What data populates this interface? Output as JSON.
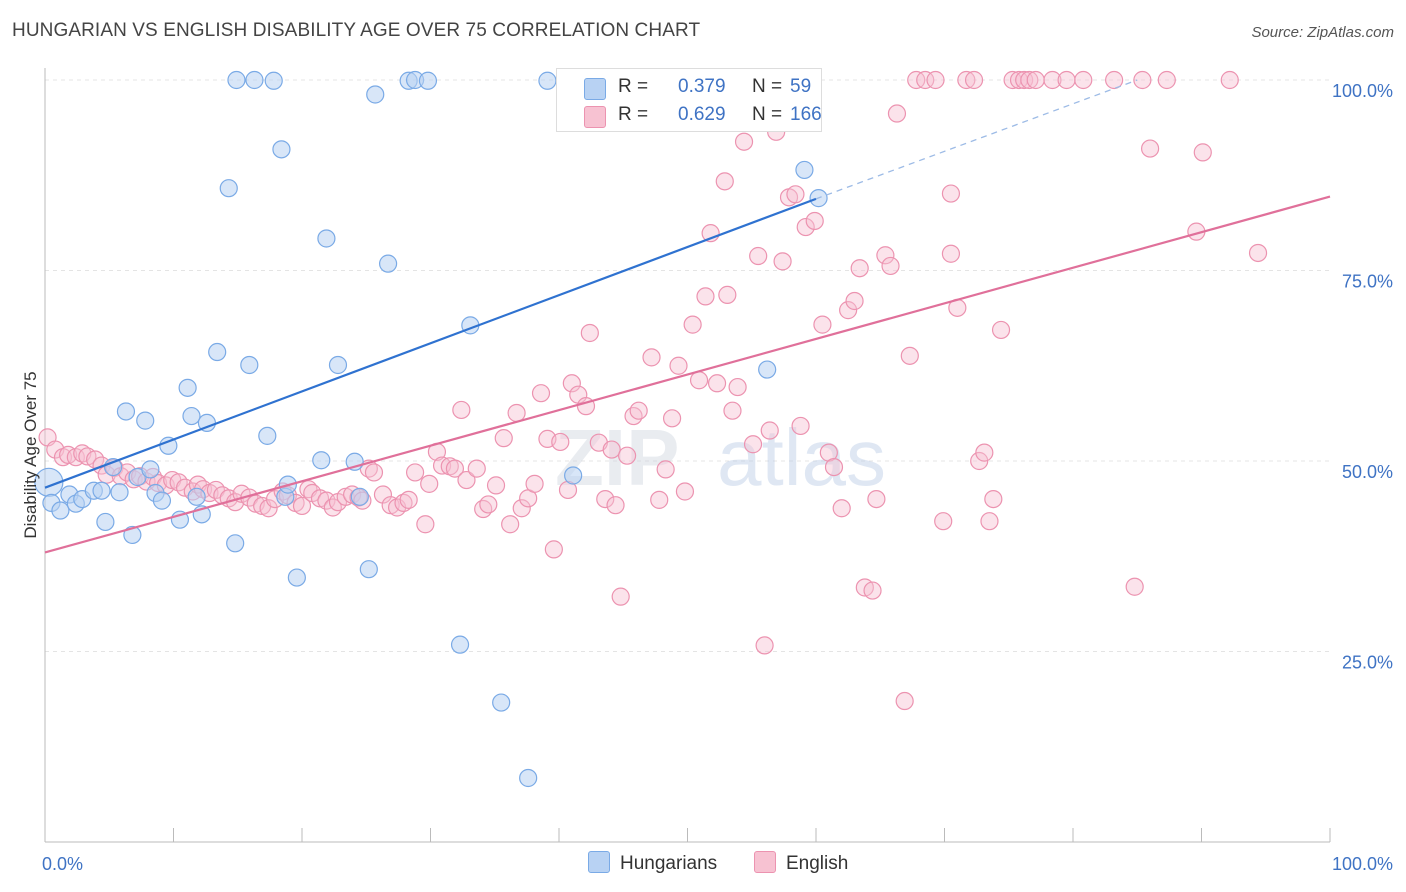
{
  "title": "HUNGARIAN VS ENGLISH DISABILITY AGE OVER 75 CORRELATION CHART",
  "source": "Source: ZipAtlas.com",
  "watermark": "ZIPatlas",
  "legend": {
    "rows": [
      {
        "r_label": "R =",
        "r_value": "0.379",
        "n_label": "N =",
        "n_value": "59"
      },
      {
        "r_label": "R =",
        "r_value": "0.629",
        "n_label": "N =",
        "n_value": "166"
      }
    ]
  },
  "bottom_legend": {
    "hungarians": "Hungarians",
    "english": "English"
  },
  "colors": {
    "hungarians_fill": "#b8d2f3",
    "hungarians_stroke": "#7aaae6",
    "hungarians_line": "#2f72d0",
    "english_fill": "#f7c2d2",
    "english_stroke": "#ec93b0",
    "english_line": "#e0709a",
    "axis_label_blue": "#3f73c4",
    "grid": "#e4e4e4"
  },
  "chart_data": {
    "type": "scatter",
    "title": "HUNGARIAN VS ENGLISH DISABILITY AGE OVER 75 CORRELATION CHART",
    "xlabel": "",
    "ylabel": "Disability Age Over 75",
    "xlim": [
      0,
      100
    ],
    "ylim": [
      0,
      100
    ],
    "x_tick_labels": [
      "0.0%",
      "100.0%"
    ],
    "y_tick_labels": [
      "25.0%",
      "50.0%",
      "75.0%",
      "100.0%"
    ],
    "y_ticks": [
      25,
      50,
      75,
      100
    ],
    "grid": true,
    "legend_position": "top-center",
    "series": [
      {
        "name": "Hungarians",
        "r": 0.379,
        "n": 59,
        "trend": {
          "x0": 0,
          "y0": 46.5,
          "x1": 60,
          "y1": 84.4,
          "dashed_to_x": 85,
          "dashed_to_y": 100
        },
        "points": [
          [
            0.3,
            47.2
          ],
          [
            0.5,
            44.5
          ],
          [
            1.2,
            43.5
          ],
          [
            1.9,
            45.6
          ],
          [
            2.4,
            44.4
          ],
          [
            2.9,
            45.0
          ],
          [
            3.8,
            46.1
          ],
          [
            4.4,
            46.1
          ],
          [
            4.7,
            42.0
          ],
          [
            5.3,
            49.2
          ],
          [
            5.8,
            45.9
          ],
          [
            6.3,
            56.5
          ],
          [
            6.8,
            40.3
          ],
          [
            7.2,
            47.9
          ],
          [
            7.8,
            55.3
          ],
          [
            8.2,
            48.9
          ],
          [
            8.6,
            45.8
          ],
          [
            9.1,
            44.8
          ],
          [
            9.6,
            52.0
          ],
          [
            10.5,
            42.3
          ],
          [
            11.1,
            59.6
          ],
          [
            11.4,
            55.9
          ],
          [
            11.8,
            45.3
          ],
          [
            12.2,
            43.0
          ],
          [
            12.6,
            55.0
          ],
          [
            13.4,
            64.3
          ],
          [
            14.3,
            85.8
          ],
          [
            14.8,
            39.2
          ],
          [
            14.9,
            100
          ],
          [
            15.9,
            62.6
          ],
          [
            16.3,
            100
          ],
          [
            17.3,
            53.3
          ],
          [
            17.8,
            99.9
          ],
          [
            18.4,
            90.9
          ],
          [
            18.7,
            45.3
          ],
          [
            18.9,
            46.9
          ],
          [
            19.6,
            34.7
          ],
          [
            21.5,
            50.1
          ],
          [
            21.9,
            79.2
          ],
          [
            22.8,
            62.6
          ],
          [
            24.1,
            49.9
          ],
          [
            24.5,
            45.3
          ],
          [
            25.2,
            35.8
          ],
          [
            25.7,
            98.1
          ],
          [
            26.7,
            75.9
          ],
          [
            28.3,
            99.9
          ],
          [
            28.8,
            100
          ],
          [
            29.8,
            99.9
          ],
          [
            32.3,
            25.9
          ],
          [
            33.1,
            67.8
          ],
          [
            35.5,
            18.3
          ],
          [
            37.6,
            8.4
          ],
          [
            39.1,
            99.9
          ],
          [
            41.1,
            48.1
          ],
          [
            41.2,
            100
          ],
          [
            47.8,
            100
          ],
          [
            56.2,
            62.0
          ],
          [
            59.1,
            88.2
          ],
          [
            60.2,
            84.5
          ]
        ]
      },
      {
        "name": "English",
        "r": 0.629,
        "n": 166,
        "trend": {
          "x0": 0,
          "y0": 38.0,
          "x1": 100,
          "y1": 84.7
        },
        "points": [
          [
            0.2,
            53.1
          ],
          [
            0.8,
            51.5
          ],
          [
            1.4,
            50.5
          ],
          [
            1.8,
            50.8
          ],
          [
            2.4,
            50.5
          ],
          [
            2.9,
            51.0
          ],
          [
            3.3,
            50.6
          ],
          [
            3.9,
            50.2
          ],
          [
            4.4,
            49.4
          ],
          [
            4.8,
            48.2
          ],
          [
            5.4,
            49.1
          ],
          [
            5.9,
            48.0
          ],
          [
            6.4,
            48.5
          ],
          [
            6.9,
            47.6
          ],
          [
            7.4,
            48.0
          ],
          [
            7.9,
            47.3
          ],
          [
            8.4,
            47.9
          ],
          [
            8.8,
            47.1
          ],
          [
            9.4,
            46.8
          ],
          [
            9.9,
            47.5
          ],
          [
            10.4,
            47.2
          ],
          [
            10.9,
            46.5
          ],
          [
            11.5,
            46.0
          ],
          [
            11.9,
            46.9
          ],
          [
            12.3,
            46.3
          ],
          [
            12.8,
            45.8
          ],
          [
            13.3,
            46.2
          ],
          [
            13.8,
            45.5
          ],
          [
            14.3,
            45.1
          ],
          [
            14.8,
            44.6
          ],
          [
            15.3,
            45.7
          ],
          [
            15.9,
            45.2
          ],
          [
            16.4,
            44.4
          ],
          [
            16.9,
            44.1
          ],
          [
            17.4,
            43.8
          ],
          [
            17.9,
            45.0
          ],
          [
            18.5,
            46.0
          ],
          [
            18.9,
            45.5
          ],
          [
            19.5,
            44.5
          ],
          [
            20.0,
            44.1
          ],
          [
            20.5,
            46.3
          ],
          [
            20.8,
            45.8
          ],
          [
            21.4,
            45.1
          ],
          [
            21.9,
            44.8
          ],
          [
            22.4,
            43.9
          ],
          [
            22.8,
            44.6
          ],
          [
            23.4,
            45.3
          ],
          [
            23.9,
            45.6
          ],
          [
            24.4,
            45.2
          ],
          [
            24.7,
            44.8
          ],
          [
            25.2,
            49.0
          ],
          [
            25.6,
            48.5
          ],
          [
            26.3,
            45.6
          ],
          [
            26.9,
            44.2
          ],
          [
            27.4,
            43.9
          ],
          [
            27.9,
            44.5
          ],
          [
            28.3,
            44.9
          ],
          [
            28.8,
            48.5
          ],
          [
            29.6,
            41.7
          ],
          [
            29.9,
            47.0
          ],
          [
            30.5,
            51.2
          ],
          [
            30.9,
            49.4
          ],
          [
            31.5,
            49.3
          ],
          [
            31.9,
            49.0
          ],
          [
            32.4,
            56.7
          ],
          [
            32.8,
            47.5
          ],
          [
            33.6,
            49.0
          ],
          [
            34.1,
            43.7
          ],
          [
            34.5,
            44.3
          ],
          [
            35.1,
            46.8
          ],
          [
            35.7,
            53.0
          ],
          [
            36.2,
            41.7
          ],
          [
            36.7,
            56.3
          ],
          [
            37.1,
            43.8
          ],
          [
            37.6,
            45.1
          ],
          [
            38.1,
            47.0
          ],
          [
            38.6,
            58.9
          ],
          [
            39.1,
            52.9
          ],
          [
            39.6,
            38.4
          ],
          [
            40.1,
            52.5
          ],
          [
            40.7,
            46.2
          ],
          [
            41.0,
            60.2
          ],
          [
            41.5,
            58.7
          ],
          [
            42.1,
            57.2
          ],
          [
            42.4,
            66.8
          ],
          [
            43.1,
            52.4
          ],
          [
            43.6,
            45.0
          ],
          [
            44.1,
            51.5
          ],
          [
            44.4,
            44.2
          ],
          [
            44.8,
            32.2
          ],
          [
            45.3,
            50.7
          ],
          [
            45.8,
            55.9
          ],
          [
            46.2,
            56.6
          ],
          [
            47.2,
            63.6
          ],
          [
            47.8,
            44.9
          ],
          [
            48.3,
            48.9
          ],
          [
            48.8,
            55.6
          ],
          [
            49.3,
            62.5
          ],
          [
            49.8,
            46.0
          ],
          [
            50.4,
            67.9
          ],
          [
            50.9,
            60.6
          ],
          [
            51.4,
            71.6
          ],
          [
            51.8,
            79.9
          ],
          [
            52.3,
            60.2
          ],
          [
            52.9,
            86.7
          ],
          [
            53.1,
            71.8
          ],
          [
            53.5,
            56.6
          ],
          [
            53.9,
            59.7
          ],
          [
            54.4,
            91.9
          ],
          [
            55.1,
            52.2
          ],
          [
            55.5,
            76.9
          ],
          [
            56.0,
            25.8
          ],
          [
            56.4,
            54.0
          ],
          [
            56.9,
            93.2
          ],
          [
            57.4,
            76.2
          ],
          [
            57.9,
            84.6
          ],
          [
            58.4,
            85.0
          ],
          [
            58.8,
            54.6
          ],
          [
            59.2,
            80.7
          ],
          [
            59.9,
            81.5
          ],
          [
            60.5,
            67.9
          ],
          [
            61.0,
            51.1
          ],
          [
            61.4,
            49.2
          ],
          [
            62.0,
            43.8
          ],
          [
            62.5,
            69.8
          ],
          [
            63.0,
            71.0
          ],
          [
            63.4,
            75.3
          ],
          [
            63.8,
            33.4
          ],
          [
            64.4,
            33.0
          ],
          [
            64.7,
            45.0
          ],
          [
            65.4,
            77.0
          ],
          [
            65.8,
            75.6
          ],
          [
            66.3,
            95.6
          ],
          [
            66.9,
            18.5
          ],
          [
            67.3,
            63.8
          ],
          [
            67.8,
            100
          ],
          [
            68.5,
            100
          ],
          [
            69.3,
            100
          ],
          [
            69.9,
            42.1
          ],
          [
            70.5,
            77.2
          ],
          [
            71.0,
            70.1
          ],
          [
            71.7,
            100
          ],
          [
            72.3,
            100
          ],
          [
            72.7,
            50.0
          ],
          [
            73.1,
            51.1
          ],
          [
            73.5,
            42.1
          ],
          [
            73.8,
            45.0
          ],
          [
            74.4,
            67.2
          ],
          [
            75.3,
            100
          ],
          [
            75.8,
            100
          ],
          [
            76.2,
            100
          ],
          [
            76.6,
            100
          ],
          [
            77.1,
            100
          ],
          [
            78.4,
            100
          ],
          [
            79.5,
            100
          ],
          [
            80.8,
            100
          ],
          [
            83.2,
            100
          ],
          [
            84.8,
            33.5
          ],
          [
            85.4,
            100
          ],
          [
            87.3,
            100
          ],
          [
            89.6,
            80.1
          ],
          [
            90.1,
            90.5
          ],
          [
            92.2,
            100
          ],
          [
            94.4,
            77.3
          ],
          [
            86.0,
            91.0
          ],
          [
            70.5,
            85.1
          ]
        ]
      }
    ]
  }
}
